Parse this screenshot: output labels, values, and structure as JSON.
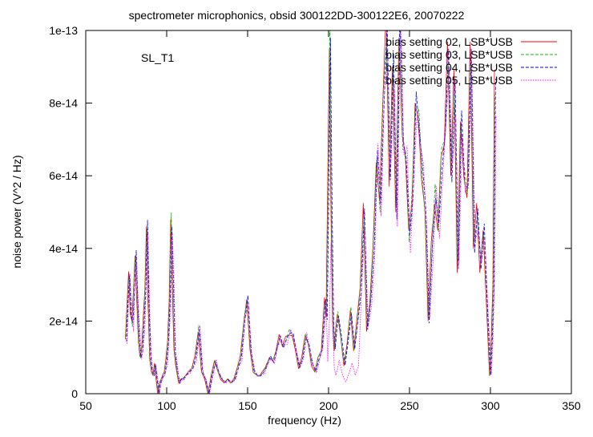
{
  "chart_data": {
    "type": "line",
    "title": "spectrometer microphonics, obsid 300122DD-300122E6, 20070222",
    "annotation": "SL_T1",
    "xlabel": "frequency (Hz)",
    "ylabel": "noise power (V^2 / Hz)",
    "xlim": [
      50,
      350
    ],
    "ylim": [
      0,
      1e-13
    ],
    "xticks": [
      50,
      100,
      150,
      200,
      250,
      300,
      350
    ],
    "xtick_labels": [
      "50",
      "100",
      "150",
      "200",
      "250",
      "300",
      "350"
    ],
    "yticks": [
      0,
      2e-14,
      4e-14,
      6e-14,
      8e-14,
      1e-13
    ],
    "ytick_labels": [
      "0",
      "2e-14",
      "4e-14",
      "6e-14",
      "8e-14",
      "1e-13"
    ],
    "grid": false,
    "legend_position": "top-right",
    "series": [
      {
        "name": "bias setting 02, LSB*USB",
        "color": "#ff0000",
        "dash": "solid"
      },
      {
        "name": "bias setting 03, LSB*USB",
        "color": "#00c000",
        "dash": "dashed"
      },
      {
        "name": "bias setting 04, LSB*USB",
        "color": "#0000ff",
        "dash": "dashed"
      },
      {
        "name": "bias setting 05, LSB*USB",
        "color": "#ff00ff",
        "dash": "dotted"
      }
    ],
    "x": [
      75,
      76,
      77,
      78,
      79,
      80,
      81,
      82,
      83,
      84,
      85,
      86,
      87,
      88,
      89,
      90,
      91,
      92,
      93,
      94,
      95,
      96,
      97,
      98,
      99,
      100,
      101,
      102,
      103,
      104,
      105,
      106,
      107,
      108,
      109,
      110,
      112,
      114,
      116,
      118,
      120,
      122,
      124,
      126,
      128,
      130,
      132,
      134,
      136,
      138,
      140,
      142,
      144,
      146,
      148,
      150,
      152,
      154,
      156,
      158,
      160,
      162,
      164,
      166,
      168,
      170,
      172,
      174,
      176,
      178,
      180,
      182,
      184,
      186,
      188,
      190,
      192,
      194,
      196,
      198,
      199,
      200,
      201,
      202,
      203,
      204,
      205,
      206,
      208,
      210,
      212,
      214,
      216,
      218,
      220,
      222,
      224,
      226,
      228,
      230,
      232,
      234,
      236,
      238,
      240,
      242,
      244,
      246,
      248,
      250,
      252,
      254,
      256,
      258,
      260,
      262,
      264,
      266,
      268,
      270,
      272,
      274,
      276,
      278,
      280,
      282,
      284,
      286,
      288,
      290,
      292,
      294,
      296,
      298,
      300,
      301,
      302,
      303
    ],
    "base_values": [
      1.5e-14,
      2.5e-14,
      3.3e-14,
      2.2e-14,
      1.9e-14,
      3e-14,
      3.8e-14,
      2.6e-14,
      1.5e-14,
      1e-14,
      1.2e-14,
      2e-14,
      3e-14,
      4.6e-14,
      2.5e-14,
      1e-14,
      6e-15,
      5e-15,
      8e-15,
      4e-15,
      0,
      3e-15,
      4e-15,
      5e-15,
      6e-15,
      9e-15,
      1.5e-14,
      2.5e-14,
      4.8e-14,
      3e-14,
      1.2e-14,
      8e-15,
      5e-15,
      3e-15,
      4e-15,
      4e-15,
      5e-15,
      6e-15,
      7e-15,
      1e-14,
      1.8e-14,
      6e-15,
      4e-15,
      0,
      5e-15,
      9e-15,
      6e-15,
      4e-15,
      3e-15,
      4e-15,
      3e-15,
      4e-15,
      7e-15,
      1e-14,
      2e-14,
      2.6e-14,
      1.2e-14,
      6e-15,
      5e-15,
      5e-15,
      6e-15,
      8e-15,
      1e-14,
      9e-15,
      1.2e-14,
      1.6e-14,
      1.3e-14,
      1.5e-14,
      1.7e-14,
      1.6e-14,
      1.2e-14,
      7e-15,
      1e-14,
      1.6e-14,
      1.3e-14,
      8e-15,
      6e-15,
      1e-14,
      1.2e-14,
      2.6e-14,
      2.1e-14,
      5.6e-14,
      1e-13,
      5e-14,
      2e-14,
      1.2e-14,
      1.8e-14,
      2.2e-14,
      1.5e-14,
      8e-15,
      1.4e-14,
      2.3e-14,
      1.2e-14,
      2e-14,
      2.9e-14,
      5e-14,
      1.8e-14,
      2.5e-14,
      4.1e-14,
      6.5e-14,
      5.2e-14,
      8e-14,
      1e-13,
      6e-14,
      9e-14,
      5e-14,
      1e-13,
      7e-14,
      6.5e-14,
      4.3e-14,
      5.5e-14,
      8e-14,
      7.5e-14,
      6e-14,
      5e-14,
      2e-14,
      4e-14,
      5.5e-14,
      4.5e-14,
      6.5e-14,
      7e-14,
      9.5e-14,
      6e-14,
      8.5e-14,
      3.5e-14,
      7.5e-14,
      6e-14,
      5.5e-14,
      9.5e-14,
      4e-14,
      5e-14,
      3.5e-14,
      4.5e-14,
      2.5e-14,
      5e-15,
      1.5e-14,
      3e-14,
      8.5e-14
    ]
  }
}
